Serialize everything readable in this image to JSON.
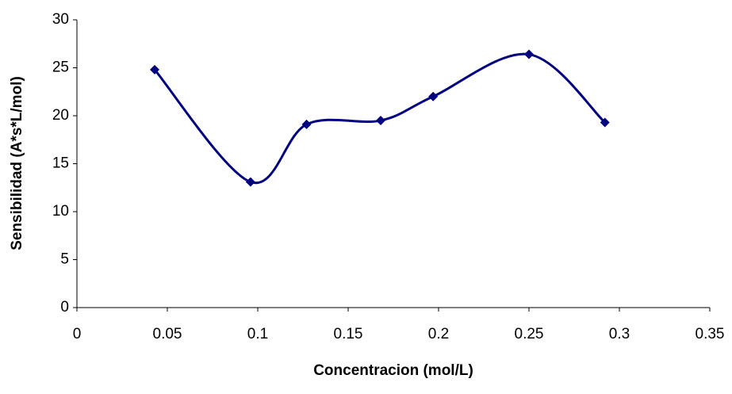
{
  "chart_data": {
    "type": "scatter",
    "x_label": "Concentracion (mol/L)",
    "y_label": "Sensibilidad (A*s*L/mol)",
    "x": [
      0.043,
      0.096,
      0.127,
      0.168,
      0.197,
      0.25,
      0.292
    ],
    "series": [
      {
        "color": "#000080",
        "values": [
          24.8,
          13.1,
          19.1,
          19.5,
          22.0,
          26.4,
          19.3
        ]
      }
    ],
    "smooth": true,
    "xlim": [
      0,
      0.35
    ],
    "xticks": [
      0,
      0.05,
      0.1,
      0.15,
      0.2,
      0.25,
      0.3,
      0.35
    ],
    "ylim": [
      0,
      30
    ],
    "yticks": [
      0,
      5,
      10,
      15,
      20,
      25,
      30
    ]
  }
}
